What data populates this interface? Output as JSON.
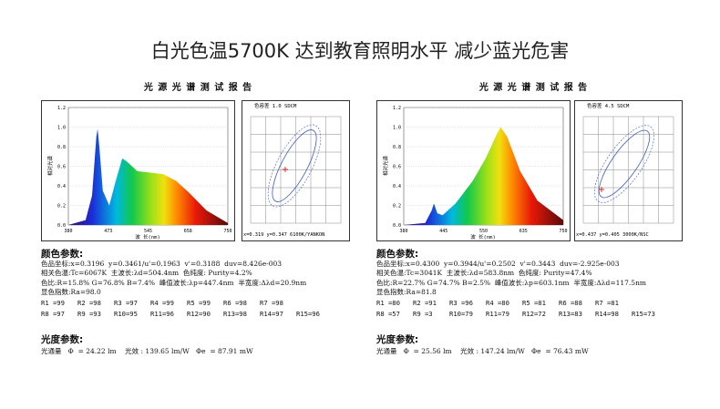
{
  "title": "白光色温5700K  达到教育照明水平  减少蓝光危害",
  "reports": [
    {
      "header": "光 源 光 谱 测 试 报 告",
      "spectrum": {
        "y_label": "相对光谱",
        "x_label": "波 长(nm)",
        "y_ticks": [
          "1.2",
          "1.0",
          "0.8",
          "0.6",
          "0.4",
          "0.2",
          "0.0"
        ],
        "x_ticks": [
          "380",
          "473",
          "545",
          "658",
          "750"
        ]
      },
      "chroma": {
        "label": "色容差   1.0 SDCM",
        "caption": "x=0.319 y=0.347 6100K/YANKON"
      },
      "color": {
        "heading": "颜色参数:",
        "lines": [
          "色品坐标:x=0.3196  y=0.3461/u'=0.1963  v'=0.3188  duv=8.426e-003",
          "相关色温:Tc=6067K  主波长:λd=504.4nm  色纯度: Purity=4.2%",
          "色比:R=15.8% G=76.8% B=7.4%  峰值波长:λp=447.4nm  半宽度:Δλd=20.9nm",
          "显色指数:Ra=98.0"
        ],
        "r_values": [
          [
            "R1 =99",
            "R2 =98",
            "R3 =97",
            "R4 =99",
            "R5 =99",
            "R6 =98",
            "R7 =98"
          ],
          [
            "R8 =97",
            "R9 =93",
            "R10=95",
            "R11=96",
            "R12=90",
            "R13=98",
            "R14=97",
            "R15=96"
          ]
        ]
      },
      "photometric": {
        "heading": "光度参数:",
        "line": "光通量   Φ  = 24.22 lm    光效 : 139.65 lm/W   Φe  = 87.91 mW"
      }
    },
    {
      "header": "光 源 光 谱 测 试 报 告",
      "spectrum": {
        "y_label": "相对光谱",
        "x_label": "波 长(nm)",
        "y_ticks": [
          "1.2",
          "1.0",
          "0.8",
          "0.6",
          "0.4",
          "0.2",
          "0.0"
        ],
        "x_ticks": [
          "380",
          "445",
          "550",
          "635",
          "750"
        ]
      },
      "chroma": {
        "label": "色容差   4.5 SDCM",
        "caption": "x=0.437 y=0.405 3000K/NSC"
      },
      "color": {
        "heading": "颜色参数:",
        "lines": [
          "色品坐标:x=0.4300  y=0.3944/u'=0.2502  v'=0.3443  duv=-2.925e-003",
          "相关色温:Tc=3041K  主波长:λd=583.8nm  色纯度: Purity=47.4%",
          "色比:R=22.7% G=74.7% B=2.5%  峰值波长:λp=603.1nm  半宽度:Δλd=117.5nm",
          "显色指数:Ra=81.8"
        ],
        "r_values": [
          [
            "R1 =80",
            "R2 =91",
            "R3 =96",
            "R4 =80",
            "R5 =81",
            "R6 =88",
            "R7 =81"
          ],
          [
            "R8 =57",
            "R9 =3",
            "R10=79",
            "R11=79",
            "R12=72",
            "R13=83",
            "R14=98",
            "R15=73"
          ]
        ]
      },
      "photometric": {
        "heading": "光度参数:",
        "line": "光通量   Φ  = 25.56 lm    光效 : 147.24 lm/W   Φe  = 76.43 mW"
      }
    }
  ]
}
